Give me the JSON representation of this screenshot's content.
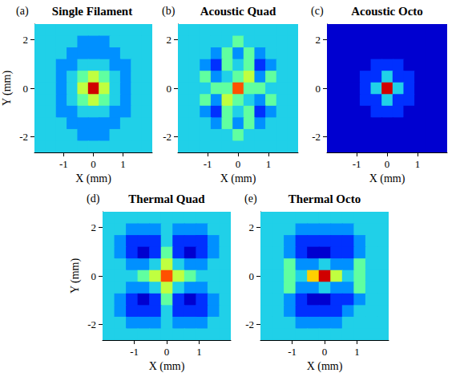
{
  "chart_data": [
    {
      "type": "heatmap",
      "title": "Single Filament",
      "annotation": "(a)",
      "xlabel": "X (mm)",
      "ylabel": "Y (mm)",
      "xlim": [
        -1.98,
        1.98
      ],
      "ylim": [
        -2.64,
        2.64
      ],
      "xticks": [
        -1,
        0,
        1
      ],
      "yticks": [
        -2,
        0,
        2
      ],
      "zlim": [
        0,
        9
      ],
      "x": [
        -1.8,
        -1.44,
        -1.08,
        -0.72,
        -0.36,
        0,
        0.36,
        0.72,
        1.08,
        1.44,
        1.8
      ],
      "y": [
        2.4,
        1.92,
        1.44,
        0.96,
        0.48,
        0,
        -0.48,
        -0.96,
        -1.44,
        -1.92,
        -2.4
      ],
      "cells": [
        [
          4,
          4,
          4,
          4,
          4,
          4,
          4,
          4,
          4,
          4,
          4
        ],
        [
          4,
          4,
          4,
          4,
          3,
          3,
          3,
          4,
          4,
          4,
          4
        ],
        [
          4,
          4,
          4,
          3,
          3,
          3,
          3,
          3,
          4,
          4,
          4
        ],
        [
          4,
          4,
          3,
          3,
          4,
          4,
          4,
          3,
          3,
          4,
          4
        ],
        [
          4,
          4,
          3,
          4,
          5,
          6,
          5,
          4,
          3,
          4,
          4
        ],
        [
          4,
          4,
          3,
          4,
          6,
          9,
          6,
          4,
          3,
          4,
          4
        ],
        [
          4,
          4,
          3,
          4,
          5,
          6,
          5,
          4,
          3,
          4,
          4
        ],
        [
          4,
          4,
          3,
          3,
          4,
          4,
          4,
          3,
          3,
          4,
          4
        ],
        [
          4,
          4,
          4,
          3,
          3,
          3,
          3,
          3,
          4,
          4,
          4
        ],
        [
          4,
          4,
          4,
          4,
          3,
          3,
          3,
          4,
          4,
          4,
          4
        ],
        [
          4,
          4,
          4,
          4,
          4,
          4,
          4,
          4,
          4,
          4,
          4
        ]
      ]
    },
    {
      "type": "heatmap",
      "title": "Acoustic Quad",
      "annotation": "(b)",
      "xlabel": "X (mm)",
      "xlim": [
        -1.98,
        1.98
      ],
      "ylim": [
        -2.64,
        2.64
      ],
      "xticks": [
        -1,
        0,
        1
      ],
      "yticks": [
        -2,
        0,
        2
      ],
      "zlim": [
        0,
        9
      ],
      "x": [
        -1.8,
        -1.44,
        -1.08,
        -0.72,
        -0.36,
        0,
        0.36,
        0.72,
        1.08,
        1.44,
        1.8
      ],
      "y": [
        2.4,
        1.92,
        1.44,
        0.96,
        0.48,
        0,
        -0.48,
        -0.96,
        -1.44,
        -1.92,
        -2.4
      ],
      "cells": [
        [
          4,
          4,
          4,
          4,
          4,
          4,
          4,
          4,
          4,
          4,
          4
        ],
        [
          4,
          4,
          4,
          4,
          4,
          5,
          4,
          4,
          4,
          4,
          4
        ],
        [
          4,
          4,
          4,
          3,
          5,
          3,
          5,
          3,
          4,
          4,
          4
        ],
        [
          4,
          4,
          3,
          2,
          5,
          4,
          5,
          2,
          3,
          4,
          4
        ],
        [
          4,
          4,
          5,
          3,
          4,
          5,
          6,
          3,
          5,
          4,
          4
        ],
        [
          4,
          4,
          4,
          5,
          5,
          8,
          5,
          5,
          4,
          4,
          4
        ],
        [
          4,
          4,
          5,
          3,
          6,
          5,
          4,
          3,
          5,
          4,
          4
        ],
        [
          4,
          4,
          3,
          2,
          5,
          4,
          5,
          2,
          3,
          4,
          4
        ],
        [
          4,
          4,
          4,
          3,
          5,
          3,
          5,
          3,
          4,
          4,
          4
        ],
        [
          4,
          4,
          4,
          4,
          4,
          5,
          4,
          4,
          4,
          4,
          4
        ],
        [
          4,
          4,
          4,
          4,
          4,
          4,
          4,
          4,
          4,
          4,
          4
        ]
      ]
    },
    {
      "type": "heatmap",
      "title": "Acoustic Octo",
      "annotation": "(c)",
      "xlabel": "X (mm)",
      "xlim": [
        -1.98,
        1.98
      ],
      "ylim": [
        -2.64,
        2.64
      ],
      "xticks": [
        -1,
        0,
        1
      ],
      "yticks": [
        -2,
        0,
        2
      ],
      "zlim": [
        0,
        9
      ],
      "x": [
        -1.8,
        -1.44,
        -1.08,
        -0.72,
        -0.36,
        0,
        0.36,
        0.72,
        1.08,
        1.44,
        1.8
      ],
      "y": [
        2.4,
        1.92,
        1.44,
        0.96,
        0.48,
        0,
        -0.48,
        -0.96,
        -1.44,
        -1.92,
        -2.4
      ],
      "cells": [
        [
          1,
          1,
          1,
          1,
          1,
          1,
          1,
          1,
          1,
          1,
          1
        ],
        [
          1,
          1,
          1,
          1,
          1,
          1,
          1,
          1,
          1,
          1,
          1
        ],
        [
          1,
          1,
          1,
          1,
          1,
          1,
          1,
          1,
          1,
          1,
          1
        ],
        [
          1,
          1,
          1,
          1,
          2,
          2,
          2,
          1,
          1,
          1,
          1
        ],
        [
          1,
          1,
          1,
          2,
          2,
          4,
          2,
          2,
          1,
          1,
          1
        ],
        [
          1,
          1,
          1,
          2,
          4,
          9,
          4,
          2,
          1,
          1,
          1
        ],
        [
          1,
          1,
          1,
          2,
          2,
          4,
          2,
          2,
          1,
          1,
          1
        ],
        [
          1,
          1,
          1,
          1,
          2,
          2,
          2,
          1,
          1,
          1,
          1
        ],
        [
          1,
          1,
          1,
          1,
          1,
          1,
          1,
          1,
          1,
          1,
          1
        ],
        [
          1,
          1,
          1,
          1,
          1,
          1,
          1,
          1,
          1,
          1,
          1
        ],
        [
          1,
          1,
          1,
          1,
          1,
          1,
          1,
          1,
          1,
          1,
          1
        ]
      ]
    },
    {
      "type": "heatmap",
      "title": "Thermal Quad",
      "annotation": "(d)",
      "xlabel": "X (mm)",
      "ylabel": "Y (mm)",
      "xlim": [
        -1.98,
        1.98
      ],
      "ylim": [
        -2.64,
        2.64
      ],
      "xticks": [
        -1,
        0,
        1
      ],
      "yticks": [
        -2,
        0,
        2
      ],
      "zlim": [
        0,
        9
      ],
      "x": [
        -1.8,
        -1.44,
        -1.08,
        -0.72,
        -0.36,
        0,
        0.36,
        0.72,
        1.08,
        1.44,
        1.8
      ],
      "y": [
        2.4,
        1.92,
        1.44,
        0.96,
        0.48,
        0,
        -0.48,
        -0.96,
        -1.44,
        -1.92,
        -2.4
      ],
      "cells": [
        [
          4,
          4,
          4,
          4,
          4,
          4,
          4,
          4,
          4,
          4,
          4
        ],
        [
          4,
          4,
          3,
          3,
          3,
          4,
          3,
          3,
          3,
          4,
          4
        ],
        [
          4,
          3,
          2,
          2,
          2,
          4,
          2,
          2,
          2,
          3,
          4
        ],
        [
          4,
          3,
          2,
          1,
          2,
          5,
          2,
          1,
          2,
          3,
          4
        ],
        [
          4,
          4,
          3,
          3,
          4,
          6,
          4,
          3,
          3,
          4,
          4
        ],
        [
          4,
          4,
          4,
          5,
          6,
          8,
          6,
          5,
          4,
          4,
          4
        ],
        [
          4,
          4,
          3,
          3,
          4,
          6,
          4,
          3,
          3,
          4,
          4
        ],
        [
          4,
          3,
          2,
          1,
          2,
          5,
          2,
          1,
          2,
          3,
          4
        ],
        [
          4,
          3,
          2,
          2,
          2,
          4,
          2,
          2,
          2,
          3,
          4
        ],
        [
          4,
          4,
          3,
          3,
          3,
          4,
          3,
          3,
          3,
          4,
          4
        ],
        [
          4,
          4,
          4,
          4,
          4,
          4,
          4,
          4,
          4,
          4,
          4
        ]
      ]
    },
    {
      "type": "heatmap",
      "title": "Thermal Octo",
      "annotation": "(e)",
      "xlabel": "X (mm)",
      "xlim": [
        -1.98,
        1.98
      ],
      "ylim": [
        -2.64,
        2.64
      ],
      "xticks": [
        -1,
        0,
        1
      ],
      "yticks": [
        -2,
        0,
        2
      ],
      "zlim": [
        0,
        9
      ],
      "x": [
        -1.8,
        -1.44,
        -1.08,
        -0.72,
        -0.36,
        0,
        0.36,
        0.72,
        1.08,
        1.44,
        1.8
      ],
      "y": [
        2.4,
        1.92,
        1.44,
        0.96,
        0.48,
        0,
        -0.48,
        -0.96,
        -1.44,
        -1.92,
        -2.4
      ],
      "cells": [
        [
          4,
          4,
          4,
          4,
          4,
          4,
          4,
          4,
          4,
          4,
          4
        ],
        [
          4,
          4,
          4,
          3,
          3,
          3,
          3,
          3,
          4,
          4,
          4
        ],
        [
          4,
          4,
          3,
          2,
          2,
          2,
          2,
          2,
          3,
          4,
          4
        ],
        [
          4,
          4,
          3,
          2,
          1,
          1,
          2,
          2,
          3,
          4,
          4
        ],
        [
          4,
          4,
          5,
          3,
          3,
          4,
          3,
          3,
          5,
          4,
          4
        ],
        [
          4,
          4,
          5,
          4,
          7,
          9,
          6,
          4,
          5,
          4,
          4
        ],
        [
          4,
          4,
          5,
          3,
          3,
          4,
          3,
          3,
          5,
          4,
          4
        ],
        [
          4,
          4,
          3,
          2,
          1,
          1,
          2,
          2,
          3,
          4,
          4
        ],
        [
          4,
          4,
          3,
          2,
          2,
          2,
          2,
          3,
          4,
          4,
          4
        ],
        [
          4,
          4,
          4,
          3,
          3,
          3,
          3,
          4,
          4,
          4,
          4
        ],
        [
          4,
          4,
          4,
          4,
          4,
          4,
          4,
          4,
          4,
          4,
          4
        ]
      ]
    }
  ]
}
